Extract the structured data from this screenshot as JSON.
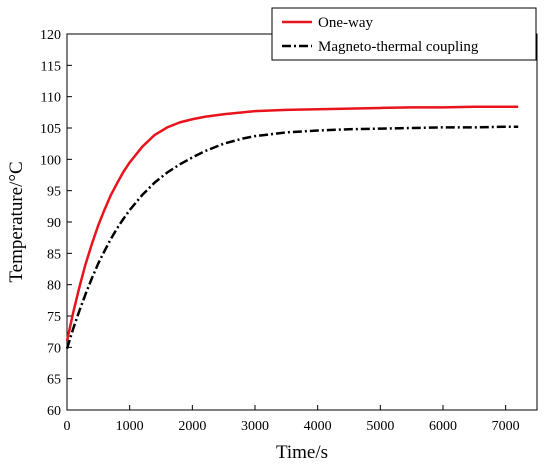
{
  "chart_data": {
    "type": "line",
    "xlabel": "Time/s",
    "ylabel": "Temperature/°C",
    "xlim": [
      0,
      7500
    ],
    "ylim": [
      60,
      120
    ],
    "xticks": [
      0,
      1000,
      2000,
      3000,
      4000,
      5000,
      6000,
      7000
    ],
    "yticks": [
      60,
      65,
      70,
      75,
      80,
      85,
      90,
      95,
      100,
      105,
      110,
      115,
      120
    ],
    "grid": false,
    "legend_position": "top-right",
    "series": [
      {
        "name": "One-way",
        "color": "#e8141c",
        "style": "solid",
        "x": [
          0,
          100,
          200,
          300,
          400,
          500,
          600,
          700,
          800,
          900,
          1000,
          1200,
          1400,
          1600,
          1800,
          2000,
          2200,
          2500,
          2800,
          3000,
          3500,
          4000,
          4500,
          5000,
          5500,
          6000,
          6500,
          7000,
          7200
        ],
        "y": [
          71.0,
          75.6,
          79.7,
          83.4,
          86.6,
          89.5,
          92.0,
          94.3,
          96.2,
          98.0,
          99.5,
          102.0,
          103.9,
          105.1,
          105.9,
          106.4,
          106.8,
          107.2,
          107.5,
          107.7,
          107.9,
          108.0,
          108.1,
          108.2,
          108.3,
          108.3,
          108.4,
          108.4,
          108.4
        ]
      },
      {
        "name": "Magneto-thermal coupling",
        "color": "#000000",
        "style": "dash-dot",
        "x": [
          0,
          100,
          200,
          300,
          400,
          500,
          600,
          700,
          800,
          900,
          1000,
          1200,
          1400,
          1600,
          1800,
          2000,
          2200,
          2500,
          2800,
          3000,
          3500,
          4000,
          4500,
          5000,
          5500,
          6000,
          6500,
          7000,
          7200
        ],
        "y": [
          69.8,
          73.0,
          75.9,
          78.6,
          81.1,
          83.4,
          85.4,
          87.3,
          89.0,
          90.5,
          91.9,
          94.3,
          96.3,
          97.9,
          99.2,
          100.3,
          101.3,
          102.5,
          103.3,
          103.7,
          104.3,
          104.6,
          104.8,
          104.9,
          105.0,
          105.1,
          105.1,
          105.2,
          105.2
        ]
      }
    ]
  }
}
